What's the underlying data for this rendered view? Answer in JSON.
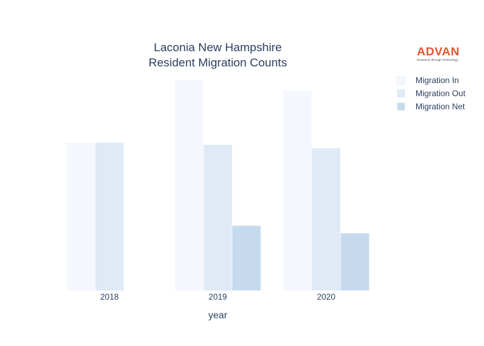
{
  "chart_data": {
    "type": "bar",
    "title_lines": [
      "Laconia New Hampshire",
      "Resident Migration Counts"
    ],
    "xlabel": "year",
    "ylabel": "",
    "categories": [
      "2018",
      "2019",
      "2020"
    ],
    "ylim": [
      0,
      310
    ],
    "grid": false,
    "legend_position": "top-right",
    "series": [
      {
        "name": "Migration In",
        "values": [
          214,
          305,
          289
        ],
        "color": "#f4f8fd"
      },
      {
        "name": "Migration Out",
        "values": [
          214,
          211,
          206
        ],
        "color": "#dfeaf6"
      },
      {
        "name": "Migration Net",
        "values": [
          0,
          94,
          83
        ],
        "color": "#c6daee"
      }
    ]
  },
  "logo": {
    "name": "ADVAN",
    "tagline": "Research through Technology"
  }
}
